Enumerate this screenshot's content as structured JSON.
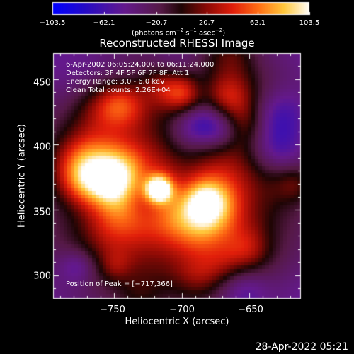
{
  "colorbar": {
    "tick_labels": [
      "−103.5",
      "−62.1",
      "−20.7",
      "20.7",
      "62.1",
      "103.5"
    ],
    "units_text": "(photons cm",
    "units_exp1": "−2",
    "units_mid": " s",
    "units_exp2": "−1",
    "units_end": " asec",
    "units_exp3": "−2",
    "units_close": ")"
  },
  "chart_data": {
    "type": "heatmap",
    "title": "Reconstructed RHESSI Image",
    "xlabel": "Heliocentric X (arcsec)",
    "ylabel": "Heliocentric Y (arcsec)",
    "xlim": [
      -795,
      -612
    ],
    "ylim": [
      282,
      470
    ],
    "x_ticks": [
      "−750",
      "−700",
      "−650"
    ],
    "y_ticks": [
      "450",
      "400",
      "350",
      "300"
    ],
    "color_range": [
      -103.5,
      103.5
    ],
    "colormap": "blue-purple-red-yellow-white",
    "peak": [
      -717,
      366
    ],
    "secondary_sources": [
      {
        "x": -668,
        "y": 402
      },
      {
        "x": -654,
        "y": 320
      }
    ],
    "annotations": [
      " 6-Apr-2002 06:05:24.000 to 06:11:24.000",
      "Detectors: 3F 4F 5F 6F 7F 8F, Att 1",
      "Energy Range: 3.0 - 6.0 keV",
      "Clean    Total counts: 2.26E+04"
    ],
    "peak_label": "Position of Peak = [−717,366]"
  },
  "footer": {
    "timestamp": "28-Apr-2022 05:21"
  }
}
